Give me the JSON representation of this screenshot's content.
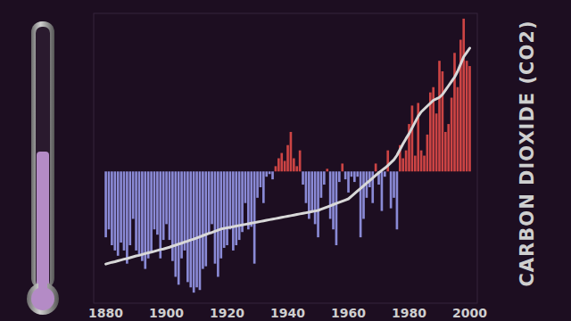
{
  "chart_data": {
    "type": "bar",
    "x": [
      1880,
      1881,
      1882,
      1883,
      1884,
      1885,
      1886,
      1887,
      1888,
      1889,
      1890,
      1891,
      1892,
      1893,
      1894,
      1895,
      1896,
      1897,
      1898,
      1899,
      1900,
      1901,
      1902,
      1903,
      1904,
      1905,
      1906,
      1907,
      1908,
      1909,
      1910,
      1911,
      1912,
      1913,
      1914,
      1915,
      1916,
      1917,
      1918,
      1919,
      1920,
      1921,
      1922,
      1923,
      1924,
      1925,
      1926,
      1927,
      1928,
      1929,
      1930,
      1931,
      1932,
      1933,
      1934,
      1935,
      1936,
      1937,
      1938,
      1939,
      1940,
      1941,
      1942,
      1943,
      1944,
      1945,
      1946,
      1947,
      1948,
      1949,
      1950,
      1951,
      1952,
      1953,
      1954,
      1955,
      1956,
      1957,
      1958,
      1959,
      1960,
      1961,
      1962,
      1963,
      1964,
      1965,
      1966,
      1967,
      1968,
      1969,
      1970,
      1971,
      1972,
      1973,
      1974,
      1975,
      1976,
      1977,
      1978,
      1979,
      1980,
      1981,
      1982,
      1983,
      1984,
      1985,
      1986,
      1987,
      1988,
      1989,
      1990,
      1991,
      1992,
      1993,
      1994,
      1995,
      1996,
      1997,
      1998,
      1999,
      2000
    ],
    "series": [
      {
        "type": "bar",
        "values": [
          -0.25,
          -0.22,
          -0.28,
          -0.3,
          -0.32,
          -0.27,
          -0.3,
          -0.35,
          -0.28,
          -0.18,
          -0.3,
          -0.32,
          -0.34,
          -0.37,
          -0.33,
          -0.31,
          -0.22,
          -0.24,
          -0.33,
          -0.26,
          -0.2,
          -0.26,
          -0.34,
          -0.4,
          -0.43,
          -0.33,
          -0.3,
          -0.42,
          -0.44,
          -0.46,
          -0.44,
          -0.45,
          -0.37,
          -0.36,
          -0.24,
          -0.2,
          -0.35,
          -0.4,
          -0.33,
          -0.29,
          -0.28,
          -0.22,
          -0.3,
          -0.28,
          -0.26,
          -0.23,
          -0.12,
          -0.22,
          -0.21,
          -0.35,
          -0.1,
          -0.06,
          -0.12,
          -0.02,
          -0.01,
          -0.03,
          0.02,
          0.05,
          0.07,
          0.04,
          0.1,
          0.15,
          0.05,
          0.02,
          0.08,
          -0.05,
          -0.12,
          -0.18,
          -0.15,
          -0.2,
          -0.25,
          -0.1,
          -0.05,
          0.01,
          -0.18,
          -0.22,
          -0.28,
          -0.04,
          0.03,
          -0.03,
          -0.08,
          -0.02,
          -0.04,
          -0.02,
          -0.25,
          -0.18,
          -0.1,
          -0.06,
          -0.12,
          0.03,
          -0.05,
          -0.15,
          -0.02,
          0.08,
          -0.14,
          -0.1,
          -0.22,
          0.1,
          0.05,
          0.08,
          0.18,
          0.25,
          0.06,
          0.26,
          0.08,
          0.06,
          0.14,
          0.3,
          0.32,
          0.22,
          0.42,
          0.38,
          0.15,
          0.18,
          0.28,
          0.45,
          0.32,
          0.5,
          0.58,
          0.42,
          0.4
        ],
        "colors": [
          "#8a8ad6",
          "#8a8ad6",
          "#8a8ad6",
          "#8a8ad6",
          "#8a8ad6",
          "#8a8ad6",
          "#8a8ad6",
          "#8a8ad6",
          "#8a8ad6",
          "#8a8ad6",
          "#8a8ad6",
          "#8a8ad6",
          "#8a8ad6",
          "#8a8ad6",
          "#8a8ad6",
          "#8a8ad6",
          "#8a8ad6",
          "#8a8ad6",
          "#8a8ad6",
          "#8a8ad6",
          "#8a8ad6",
          "#8a8ad6",
          "#8a8ad6",
          "#8a8ad6",
          "#8a8ad6",
          "#8a8ad6",
          "#8a8ad6",
          "#8a8ad6",
          "#8a8ad6",
          "#8a8ad6",
          "#8a8ad6",
          "#8a8ad6",
          "#8a8ad6",
          "#8a8ad6",
          "#8a8ad6",
          "#8a8ad6",
          "#8a8ad6",
          "#8a8ad6",
          "#8a8ad6",
          "#8a8ad6",
          "#8a8ad6",
          "#8a8ad6",
          "#8a8ad6",
          "#8a8ad6",
          "#8a8ad6",
          "#8a8ad6",
          "#8a8ad6",
          "#8a8ad6",
          "#8a8ad6",
          "#8a8ad6",
          "#8a8ad6",
          "#8a8ad6",
          "#8a8ad6",
          "#8a8ad6",
          "#8a8ad6",
          "#8a8ad6",
          "#cc4444",
          "#cc4444",
          "#cc4444",
          "#cc4444",
          "#cc4444",
          "#cc4444",
          "#cc4444",
          "#cc4444",
          "#cc4444",
          "#8a8ad6",
          "#8a8ad6",
          "#8a8ad6",
          "#8a8ad6",
          "#8a8ad6",
          "#8a8ad6",
          "#8a8ad6",
          "#8a8ad6",
          "#cc4444",
          "#8a8ad6",
          "#8a8ad6",
          "#8a8ad6",
          "#8a8ad6",
          "#cc4444",
          "#8a8ad6",
          "#8a8ad6",
          "#8a8ad6",
          "#8a8ad6",
          "#8a8ad6",
          "#8a8ad6",
          "#8a8ad6",
          "#8a8ad6",
          "#8a8ad6",
          "#8a8ad6",
          "#cc4444",
          "#8a8ad6",
          "#8a8ad6",
          "#8a8ad6",
          "#cc4444",
          "#8a8ad6",
          "#8a8ad6",
          "#8a8ad6",
          "#cc4444",
          "#cc4444",
          "#cc4444",
          "#cc4444",
          "#cc4444",
          "#cc4444",
          "#cc4444",
          "#cc4444",
          "#cc4444",
          "#cc4444",
          "#cc4444",
          "#cc4444",
          "#cc4444",
          "#cc4444",
          "#cc4444",
          "#cc4444",
          "#cc4444",
          "#cc4444",
          "#cc4444",
          "#cc4444",
          "#cc4444",
          "#cc4444",
          "#cc4444",
          "#cc4444"
        ]
      },
      {
        "name": "CARBON DIOXIDE (CO2)",
        "type": "line",
        "axis": "y2",
        "color": "#d8d8d8",
        "values": [
          293.5,
          293.8,
          294.1,
          294.3,
          294.6,
          294.9,
          295.2,
          295.4,
          295.7,
          296.0,
          296.3,
          296.5,
          296.8,
          297.1,
          297.4,
          297.6,
          297.9,
          298.2,
          298.5,
          298.7,
          299.0,
          299.3,
          299.7,
          300.0,
          300.4,
          300.7,
          301.1,
          301.4,
          301.8,
          302.1,
          302.5,
          302.9,
          303.3,
          303.7,
          304.1,
          304.4,
          304.8,
          305.2,
          305.6,
          305.8,
          306.0,
          306.2,
          306.4,
          306.6,
          306.8,
          307.0,
          307.2,
          307.4,
          307.6,
          307.8,
          308.0,
          308.2,
          308.4,
          308.6,
          308.8,
          309.0,
          309.2,
          309.4,
          309.6,
          309.8,
          310.0,
          310.2,
          310.4,
          310.6,
          310.8,
          311.0,
          311.2,
          311.4,
          311.6,
          311.8,
          312.0,
          312.4,
          312.8,
          313.2,
          313.6,
          314.0,
          314.4,
          314.8,
          315.2,
          315.6,
          316.0,
          316.9,
          317.8,
          318.7,
          319.6,
          320.5,
          321.4,
          322.3,
          323.2,
          324.1,
          325.0,
          325.8,
          326.6,
          327.5,
          328.5,
          329.5,
          331.0,
          333.0,
          335.0,
          336.8,
          338.5,
          340.5,
          342.5,
          344.5,
          346.0,
          347.0,
          348.0,
          349.0,
          350.0,
          350.5,
          351.0,
          352.0,
          353.5,
          355.0,
          356.5,
          358.0,
          360.0,
          362.5,
          365.0,
          366.5,
          368.0
        ]
      }
    ],
    "xlim": [
      1876,
      2002.5
    ],
    "xticks": [
      1880,
      1900,
      1920,
      1940,
      1960,
      1980,
      2000
    ],
    "ylim": [
      -0.5,
      0.6
    ],
    "y2lim": [
      280,
      380
    ],
    "grid": false,
    "tick_labels": "x"
  }
}
